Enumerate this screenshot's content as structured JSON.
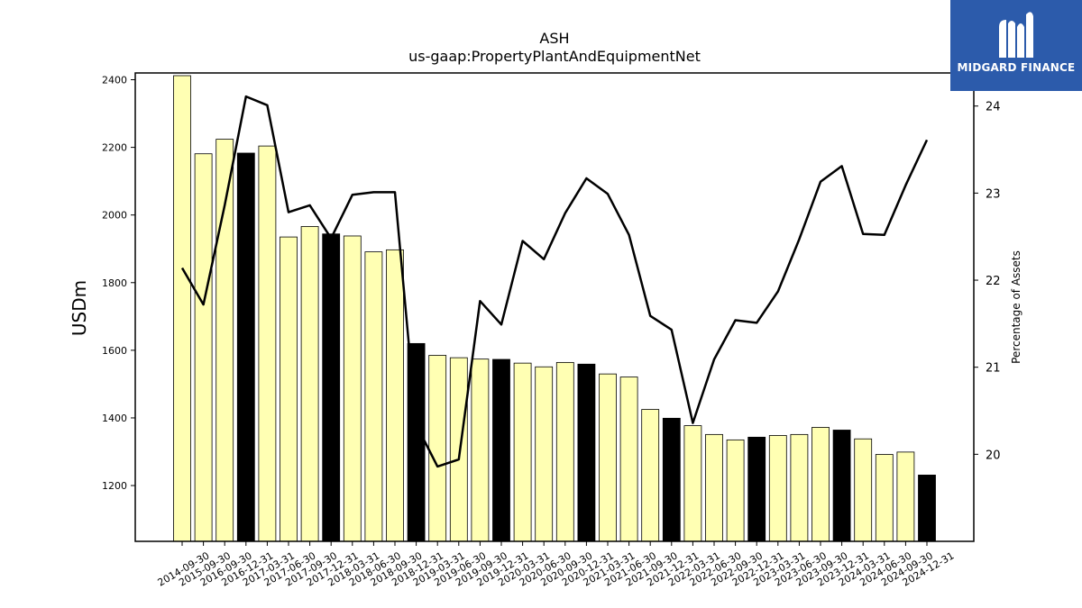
{
  "logo": {
    "name": "MIDGARD FINANCE",
    "icon": "midgard-mark-icon",
    "background": "#2c5bab"
  },
  "chart_data": {
    "type": "bar+line",
    "title": "ASH",
    "subtitle": "us-gaap:PropertyPlantAndEquipmentNet",
    "ylabel": "USDm",
    "y2label": "Percentage of Assets",
    "ylim": [
      1035,
      2420
    ],
    "y2lim": [
      19.0,
      24.38
    ],
    "yticks": [
      1200,
      1400,
      1600,
      1800,
      2000,
      2200,
      2400
    ],
    "y2ticks": [
      20,
      21,
      22,
      23,
      24
    ],
    "categories": [
      "2014-09-30",
      "2015-09-30",
      "2016-09-30",
      "2016-12-31",
      "2017-03-31",
      "2017-06-30",
      "2017-09-30",
      "2017-12-31",
      "2018-03-31",
      "2018-06-30",
      "2018-09-30",
      "2018-12-31",
      "2019-03-31",
      "2019-06-30",
      "2019-09-30",
      "2019-12-31",
      "2020-03-31",
      "2020-06-30",
      "2020-09-30",
      "2020-12-31",
      "2021-03-31",
      "2021-06-30",
      "2021-09-30",
      "2021-12-31",
      "2022-03-31",
      "2022-06-30",
      "2022-09-30",
      "2022-12-31",
      "2023-03-31",
      "2023-06-30",
      "2023-09-30",
      "2023-12-31",
      "2024-03-31",
      "2024-06-30",
      "2024-09-30",
      "2024-12-31"
    ],
    "series": [
      {
        "type": "bar",
        "values": [
          2412,
          2181,
          2224,
          2183,
          2204,
          1935,
          1966,
          1944,
          1938,
          1891,
          1897,
          1620,
          1585,
          1578,
          1574,
          1573,
          1562,
          1551,
          1564,
          1559,
          1530,
          1521,
          1425,
          1399,
          1377,
          1351,
          1335,
          1343,
          1348,
          1351,
          1372,
          1364,
          1338,
          1292,
          1299,
          1231
        ],
        "highlight": [
          false,
          false,
          false,
          true,
          false,
          false,
          false,
          true,
          false,
          false,
          false,
          true,
          false,
          false,
          false,
          true,
          false,
          false,
          false,
          true,
          false,
          false,
          false,
          true,
          false,
          false,
          false,
          true,
          false,
          false,
          false,
          true,
          false,
          false,
          false,
          true
        ]
      },
      {
        "type": "line",
        "axis": "right",
        "values": [
          22.14,
          21.72,
          22.86,
          24.11,
          24.01,
          22.78,
          22.86,
          22.48,
          22.98,
          23.01,
          23.01,
          20.34,
          19.86,
          19.94,
          21.76,
          21.49,
          22.45,
          22.24,
          22.77,
          23.17,
          22.99,
          22.52,
          21.59,
          21.43,
          20.36,
          21.09,
          21.54,
          21.51,
          21.87,
          22.47,
          23.13,
          23.31,
          22.53,
          22.52,
          23.09,
          23.61
        ]
      }
    ],
    "colors": {
      "bar": "#ffffb3",
      "bar_highlight": "#000000",
      "line": "#000000"
    },
    "grid": false,
    "legend": "none"
  }
}
